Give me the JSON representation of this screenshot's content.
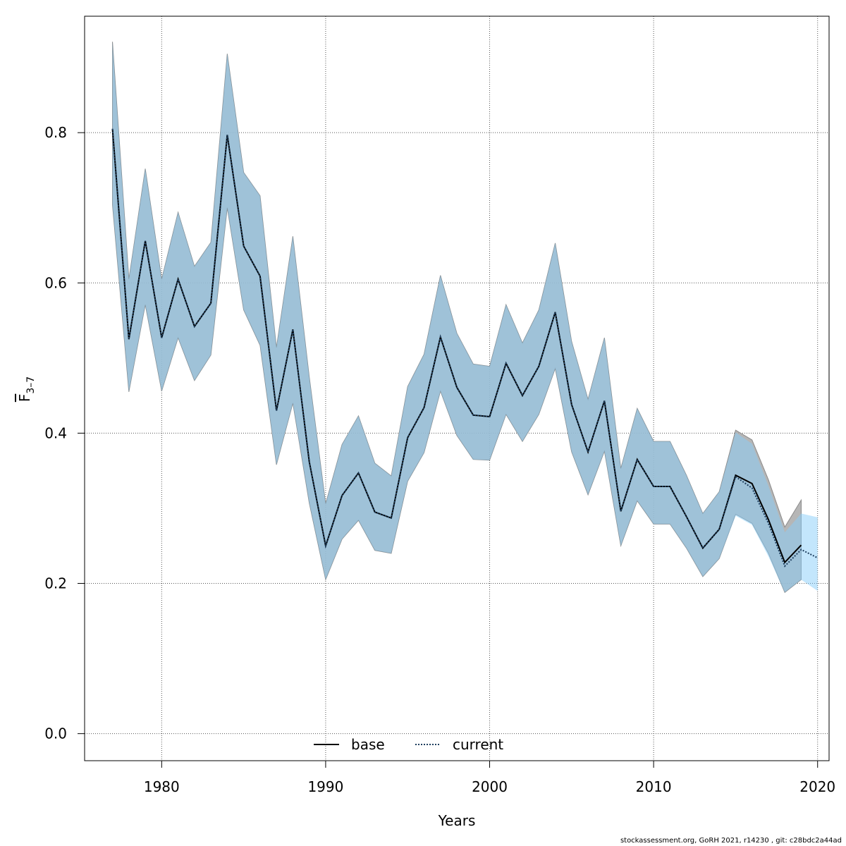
{
  "chart_data": {
    "type": "line",
    "xlabel": "Years",
    "ylabel_main": "F",
    "ylabel_sub": "3–7",
    "xlim": [
      1975.3,
      2020.7
    ],
    "ylim": [
      -0.036,
      0.955
    ],
    "x_ticks": [
      1980,
      1990,
      2000,
      2010,
      2020
    ],
    "y_ticks": [
      0.0,
      0.2,
      0.4,
      0.6,
      0.8
    ],
    "x_tick_labels": [
      "1980",
      "1990",
      "2000",
      "2010",
      "2020"
    ],
    "y_tick_labels": [
      "0.0",
      "0.2",
      "0.4",
      "0.6",
      "0.8"
    ],
    "grid": true,
    "legend_position": "bottom-center",
    "series": [
      {
        "name": "base",
        "color": "#000000",
        "style": "solid",
        "band_color": "#a9a9a9",
        "x": [
          1977,
          1978,
          1979,
          1980,
          1981,
          1982,
          1983,
          1984,
          1985,
          1986,
          1987,
          1988,
          1989,
          1990,
          1991,
          1992,
          1993,
          1994,
          1995,
          1996,
          1997,
          1998,
          1999,
          2000,
          2001,
          2002,
          2003,
          2004,
          2005,
          2006,
          2007,
          2008,
          2009,
          2010,
          2011,
          2012,
          2013,
          2014,
          2015,
          2016,
          2017,
          2018,
          2019
        ],
        "values": [
          0.805,
          0.525,
          0.656,
          0.527,
          0.605,
          0.542,
          0.573,
          0.797,
          0.649,
          0.609,
          0.43,
          0.538,
          0.362,
          0.25,
          0.317,
          0.347,
          0.295,
          0.287,
          0.394,
          0.434,
          0.528,
          0.461,
          0.424,
          0.422,
          0.493,
          0.45,
          0.489,
          0.561,
          0.438,
          0.375,
          0.443,
          0.296,
          0.365,
          0.329,
          0.329,
          0.289,
          0.247,
          0.272,
          0.344,
          0.333,
          0.285,
          0.228,
          0.251
        ],
        "lower": [
          0.704,
          0.455,
          0.571,
          0.456,
          0.527,
          0.47,
          0.504,
          0.7,
          0.564,
          0.517,
          0.358,
          0.44,
          0.307,
          0.205,
          0.259,
          0.284,
          0.244,
          0.24,
          0.336,
          0.374,
          0.456,
          0.397,
          0.365,
          0.364,
          0.425,
          0.389,
          0.425,
          0.486,
          0.375,
          0.318,
          0.376,
          0.25,
          0.31,
          0.279,
          0.279,
          0.247,
          0.209,
          0.233,
          0.292,
          0.28,
          0.24,
          0.188,
          0.205
        ],
        "upper": [
          0.921,
          0.605,
          0.752,
          0.605,
          0.694,
          0.622,
          0.654,
          0.905,
          0.747,
          0.716,
          0.514,
          0.662,
          0.475,
          0.306,
          0.385,
          0.423,
          0.36,
          0.343,
          0.462,
          0.505,
          0.61,
          0.533,
          0.492,
          0.489,
          0.571,
          0.52,
          0.564,
          0.653,
          0.522,
          0.445,
          0.527,
          0.353,
          0.433,
          0.389,
          0.389,
          0.344,
          0.293,
          0.322,
          0.404,
          0.391,
          0.338,
          0.275,
          0.311
        ]
      },
      {
        "name": "current",
        "color": "#1f3f5f",
        "style": "dotted",
        "band_color": "#87cefa",
        "x": [
          1977,
          1978,
          1979,
          1980,
          1981,
          1982,
          1983,
          1984,
          1985,
          1986,
          1987,
          1988,
          1989,
          1990,
          1991,
          1992,
          1993,
          1994,
          1995,
          1996,
          1997,
          1998,
          1999,
          2000,
          2001,
          2002,
          2003,
          2004,
          2005,
          2006,
          2007,
          2008,
          2009,
          2010,
          2011,
          2012,
          2013,
          2014,
          2015,
          2016,
          2017,
          2018,
          2019,
          2020
        ],
        "values": [
          0.805,
          0.525,
          0.656,
          0.527,
          0.605,
          0.542,
          0.573,
          0.797,
          0.649,
          0.609,
          0.43,
          0.538,
          0.362,
          0.25,
          0.317,
          0.347,
          0.295,
          0.287,
          0.394,
          0.434,
          0.528,
          0.461,
          0.424,
          0.422,
          0.493,
          0.45,
          0.489,
          0.561,
          0.438,
          0.375,
          0.443,
          0.296,
          0.365,
          0.329,
          0.329,
          0.289,
          0.247,
          0.272,
          0.342,
          0.327,
          0.28,
          0.223,
          0.245,
          0.234
        ],
        "lower": [
          0.704,
          0.455,
          0.571,
          0.456,
          0.527,
          0.47,
          0.504,
          0.7,
          0.564,
          0.517,
          0.358,
          0.44,
          0.307,
          0.205,
          0.259,
          0.284,
          0.244,
          0.24,
          0.336,
          0.374,
          0.456,
          0.397,
          0.365,
          0.364,
          0.425,
          0.389,
          0.425,
          0.486,
          0.375,
          0.318,
          0.376,
          0.25,
          0.31,
          0.279,
          0.279,
          0.247,
          0.209,
          0.233,
          0.29,
          0.278,
          0.236,
          0.188,
          0.205,
          0.19
        ],
        "upper": [
          0.921,
          0.605,
          0.752,
          0.605,
          0.694,
          0.622,
          0.654,
          0.905,
          0.747,
          0.716,
          0.514,
          0.662,
          0.475,
          0.306,
          0.385,
          0.423,
          0.36,
          0.343,
          0.462,
          0.505,
          0.61,
          0.533,
          0.492,
          0.489,
          0.571,
          0.52,
          0.564,
          0.653,
          0.522,
          0.445,
          0.527,
          0.353,
          0.433,
          0.389,
          0.389,
          0.344,
          0.293,
          0.322,
          0.401,
          0.386,
          0.33,
          0.268,
          0.293,
          0.288
        ]
      }
    ]
  },
  "footer_text": "stockassessment.org, GoRH  2021, r14230 , git: c28bdc2a44ad"
}
